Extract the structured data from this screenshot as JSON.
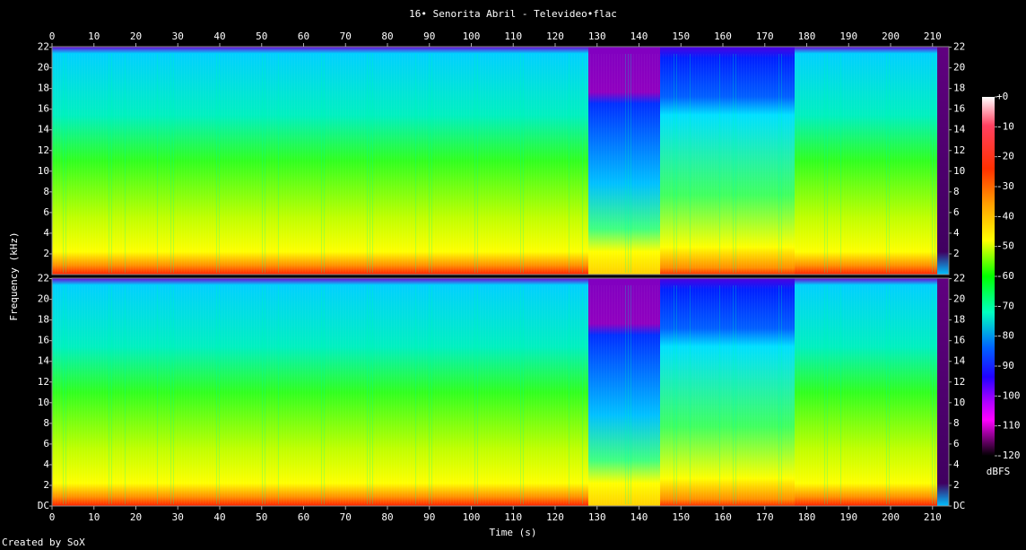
{
  "chart_data": {
    "type": "spectrogram",
    "title": "16• Senorita Abril - Televideo•flac",
    "xlabel": "Time (s)",
    "ylabel": "Frequency (kHz)",
    "xlim": [
      0,
      213.9
    ],
    "xticks": [
      0,
      10,
      20,
      30,
      40,
      50,
      60,
      70,
      80,
      90,
      100,
      110,
      120,
      130,
      140,
      150,
      160,
      170,
      180,
      190,
      200,
      210
    ],
    "ylim": [
      0,
      22.05
    ],
    "yticks": [
      {
        "value": 0,
        "label": "DC"
      },
      2,
      4,
      6,
      8,
      10,
      12,
      14,
      16,
      18,
      20,
      22
    ],
    "channels": 2,
    "colorbar_label": "dBFS",
    "clim": [
      -120,
      0
    ],
    "colorbar_ticks": [
      {
        "value": 0,
        "label": "+0"
      },
      -10,
      -20,
      -30,
      -40,
      -50,
      -60,
      -70,
      -80,
      -90,
      -100,
      -110,
      -120
    ],
    "footer": "Created by SoX"
  }
}
